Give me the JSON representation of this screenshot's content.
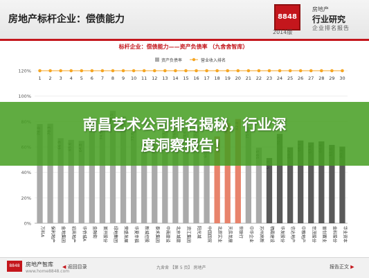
{
  "header": {
    "title": "房地产标杆企业：偿债能力",
    "logo_text": "8848",
    "logo_year": "2014版",
    "brand_top": "房地产",
    "brand_main": "行业研究",
    "brand_sub": "企业排名报告"
  },
  "banner": {
    "line1": "南昌艺术公司排名揭秘，行业深",
    "line2": "度洞察报告！"
  },
  "chart_data": {
    "type": "bar",
    "title": "标杆企业：偿债能力——资产负债率    （九舍舍智库）",
    "legend": [
      "资产负债率",
      "营业收入排名"
    ],
    "legend_position": "top-center",
    "y_ticks": [
      "0%",
      "20%",
      "40%",
      "60%",
      "80%",
      "100%",
      "120%"
    ],
    "ylim": [
      0,
      120
    ],
    "ranks": [
      1,
      2,
      3,
      4,
      5,
      6,
      7,
      8,
      9,
      10,
      11,
      12,
      13,
      14,
      15,
      16,
      17,
      18,
      19,
      20,
      21,
      22,
      23,
      24,
      25,
      26,
      27,
      28,
      29,
      30
    ],
    "rank_line_value": 120,
    "categories": [
      "万科A",
      "保利地产",
      "金地集团",
      "招商地产",
      "华侨城A",
      "金融街",
      "首开股份",
      "绿地集团",
      "荣盛发展",
      "华夏幸福",
      "新城控股",
      "泰禾集团",
      "中南建设",
      "北京城建",
      "滨江集团",
      "阳光城",
      "中国国贸",
      "北辰实业",
      "天房发展",
      "世联行",
      "中华企业",
      "苏州高新",
      "栖霞建设",
      "华发股份",
      "信达地产",
      "中粮地产",
      "世茂股份",
      "首创置业",
      "金科股份",
      "华业资本"
    ],
    "values": [
      78.0,
      78.3,
      66.9,
      65.6,
      64.8,
      81.6,
      74.5,
      88.5,
      84.1,
      73.6,
      64.5,
      63.8,
      73.3,
      76.1,
      74.6,
      75.4,
      60.3,
      68.3,
      78.9,
      82.0,
      75.5,
      59.5,
      51.3,
      70.3,
      59.7,
      65.1,
      63.6,
      64.4,
      61.6,
      60.3
    ],
    "value_labels": [
      "78.0",
      "78.3",
      "66.9",
      "65.6",
      "64.8",
      "81.6",
      "74.5",
      "88.5",
      "84.1",
      "73.6",
      "64.5",
      "63.8",
      "73.3",
      "76.1",
      "74.6",
      "75.4",
      "60.3",
      "68.3",
      "78.9",
      "82.0",
      "75.5",
      "59.5",
      "51.3",
      "70.3",
      "59.7",
      "65.1",
      "63.6",
      "64.4",
      "61.6",
      "60.3"
    ],
    "colors": {
      "bar": "#aaaaaa",
      "bar_highlight": "#e8836b",
      "bar_dark": "#5a5a5a",
      "line": "#f5a623",
      "rank_label": "#333333"
    },
    "highlight_indices": [
      17,
      18,
      19
    ],
    "dark_indices": [
      22,
      23,
      24,
      25,
      26,
      27,
      28,
      29
    ]
  },
  "footer": {
    "logo_text": "8848",
    "brand": "房地产智库",
    "url": "www.home8848.com",
    "left_button": "返回目录",
    "mid_text": "九舍舍    【第 5 页】    房地产",
    "right_button": "报告正文"
  }
}
